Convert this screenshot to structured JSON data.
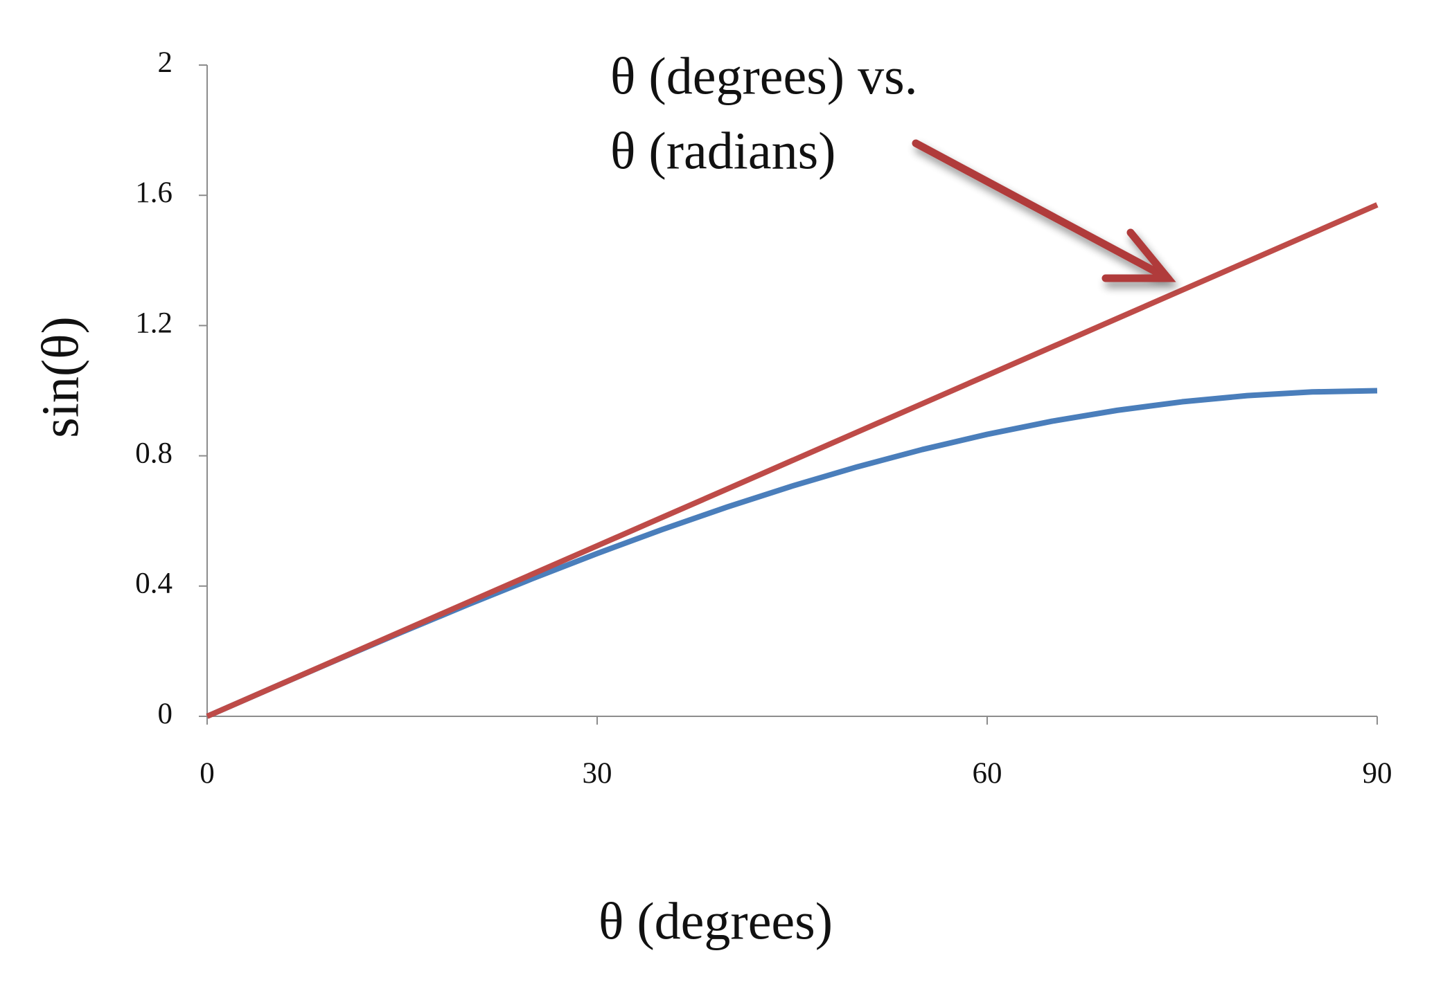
{
  "chart_data": {
    "type": "line",
    "annotation": [
      "θ (degrees) vs.",
      "θ (radians)"
    ],
    "xlabel": "θ (degrees)",
    "ylabel": "sin(θ)",
    "x": [
      0,
      5,
      10,
      15,
      20,
      25,
      30,
      35,
      40,
      45,
      50,
      55,
      60,
      65,
      70,
      75,
      80,
      85,
      90
    ],
    "series": [
      {
        "color": "#4a7ebb",
        "values": [
          0,
          0.0872,
          0.1736,
          0.2588,
          0.342,
          0.4226,
          0.5,
          0.5736,
          0.6428,
          0.7071,
          0.766,
          0.8192,
          0.866,
          0.9063,
          0.9397,
          0.9659,
          0.9848,
          0.9962,
          1
        ]
      },
      {
        "color": "#be4b48",
        "values": [
          0,
          0.0873,
          0.1745,
          0.2618,
          0.3491,
          0.4363,
          0.5236,
          0.6109,
          0.6981,
          0.7854,
          0.8727,
          0.9599,
          1.0472,
          1.1345,
          1.2217,
          1.309,
          1.3963,
          1.4835,
          1.5708
        ]
      }
    ],
    "xlim": [
      0,
      90
    ],
    "xticks": [
      0,
      30,
      60,
      90
    ],
    "ylim": [
      0,
      2
    ],
    "yticks": [
      0,
      0.4,
      0.8,
      1.2,
      1.6,
      2
    ]
  }
}
